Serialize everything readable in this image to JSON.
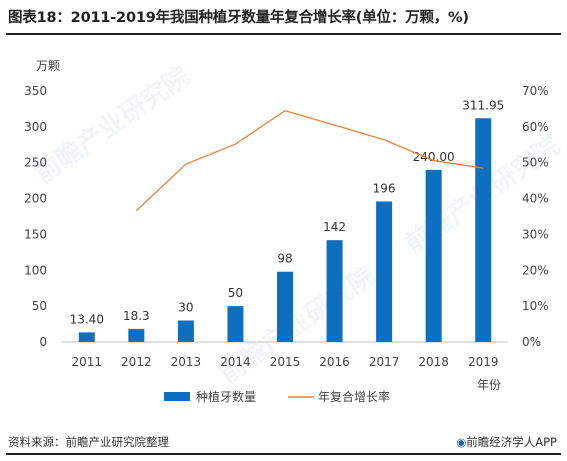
{
  "title": "图表18：2011-2019年我国种植牙数量年复合增长率(单位：万颗，%)",
  "source": "资料来源：前瞻产业研究院整理",
  "credit": "前瞻经济学人APP",
  "watermark": "前瞻产业研究院",
  "colors": {
    "bar": "#0e6fc1",
    "line": "#e8823d",
    "axis": "#bfbfbf",
    "text": "#444444"
  },
  "chart_data": {
    "type": "bar",
    "categories": [
      "2011",
      "2012",
      "2013",
      "2014",
      "2015",
      "2016",
      "2017",
      "2018",
      "2019"
    ],
    "series": [
      {
        "name": "种植牙数量",
        "type": "bar",
        "axis": "left",
        "values": [
          13.4,
          18.3,
          30,
          50,
          98,
          142,
          196,
          240.0,
          311.95
        ],
        "labels": [
          "13.40",
          "18.3",
          "30",
          "50",
          "98",
          "142",
          "196",
          "240.00",
          "311.95"
        ]
      },
      {
        "name": "年复合增长率",
        "type": "line",
        "axis": "right",
        "values": [
          null,
          36.6,
          49.6,
          55.2,
          64.5,
          60.5,
          56.4,
          50.6,
          48.5
        ]
      }
    ],
    "ylabel": "万颗",
    "xlabel": "年份",
    "ylim": [
      0,
      350
    ],
    "yticks": [
      "0",
      "50",
      "100",
      "150",
      "200",
      "250",
      "300",
      "350"
    ],
    "ytick_values": [
      0,
      50,
      100,
      150,
      200,
      250,
      300,
      350
    ],
    "y2lim": [
      0,
      70
    ],
    "y2ticks": [
      "0%",
      "10%",
      "20%",
      "30%",
      "40%",
      "50%",
      "60%",
      "70%"
    ],
    "y2tick_values": [
      0,
      10,
      20,
      30,
      40,
      50,
      60,
      70
    ],
    "grid": false,
    "legend": "bottom"
  }
}
